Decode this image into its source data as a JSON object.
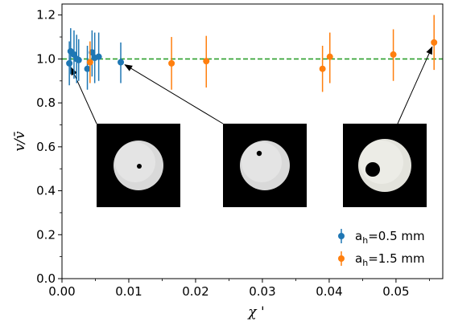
{
  "chart_data": {
    "type": "scatter",
    "xlabel": "χ '",
    "ylabel": "v/v̄",
    "xlim": [
      0.0,
      0.057
    ],
    "ylim": [
      0.0,
      1.25
    ],
    "x_ticks": [
      "0.00",
      "0.01",
      "0.02",
      "0.03",
      "0.04",
      "0.05"
    ],
    "y_ticks": [
      "0.0",
      "0.2",
      "0.4",
      "0.6",
      "0.8",
      "1.0",
      "1.2"
    ],
    "reference_line": {
      "y": 1.0,
      "style": "dashed",
      "color": "#2ca02c"
    },
    "legend_position": "lower-right",
    "series": [
      {
        "name": "a_h=0.5 mm",
        "legend_main": "a",
        "legend_sub": "h",
        "legend_rest": "=0.5 mm",
        "color": "#1f77b4",
        "points": [
          {
            "x": 0.0011,
            "y": 0.98,
            "lo": 0.88,
            "hi": 1.08
          },
          {
            "x": 0.0013,
            "y": 1.035,
            "lo": 0.93,
            "hi": 1.14
          },
          {
            "x": 0.0018,
            "y": 1.02,
            "lo": 0.91,
            "hi": 1.13
          },
          {
            "x": 0.0022,
            "y": 1.0,
            "lo": 0.89,
            "hi": 1.11
          },
          {
            "x": 0.0025,
            "y": 0.995,
            "lo": 0.9,
            "hi": 1.09
          },
          {
            "x": 0.0038,
            "y": 0.955,
            "lo": 0.86,
            "hi": 1.06
          },
          {
            "x": 0.0045,
            "y": 1.03,
            "lo": 0.92,
            "hi": 1.13
          },
          {
            "x": 0.0049,
            "y": 1.005,
            "lo": 0.89,
            "hi": 1.12
          },
          {
            "x": 0.0055,
            "y": 1.01,
            "lo": 0.9,
            "hi": 1.12
          },
          {
            "x": 0.0088,
            "y": 0.985,
            "lo": 0.89,
            "hi": 1.075
          }
        ]
      },
      {
        "name": "a_h=1.5 mm",
        "legend_main": "a",
        "legend_sub": "h",
        "legend_rest": "=1.5 mm",
        "color": "#ff7f0e",
        "points": [
          {
            "x": 0.0042,
            "y": 0.985,
            "lo": 0.89,
            "hi": 1.08
          },
          {
            "x": 0.0164,
            "y": 0.98,
            "lo": 0.86,
            "hi": 1.1
          },
          {
            "x": 0.0216,
            "y": 0.99,
            "lo": 0.87,
            "hi": 1.105
          },
          {
            "x": 0.039,
            "y": 0.955,
            "lo": 0.85,
            "hi": 1.06
          },
          {
            "x": 0.0401,
            "y": 1.01,
            "lo": 0.89,
            "hi": 1.12
          },
          {
            "x": 0.0496,
            "y": 1.02,
            "lo": 0.9,
            "hi": 1.135
          },
          {
            "x": 0.0557,
            "y": 1.075,
            "lo": 0.95,
            "hi": 1.2
          }
        ]
      }
    ],
    "insets": [
      {
        "name": "inset-small-hole",
        "hole": "small-centered"
      },
      {
        "name": "inset-medium-hole",
        "hole": "small-offcenter"
      },
      {
        "name": "inset-large-hole",
        "hole": "large-offcenter"
      }
    ]
  }
}
